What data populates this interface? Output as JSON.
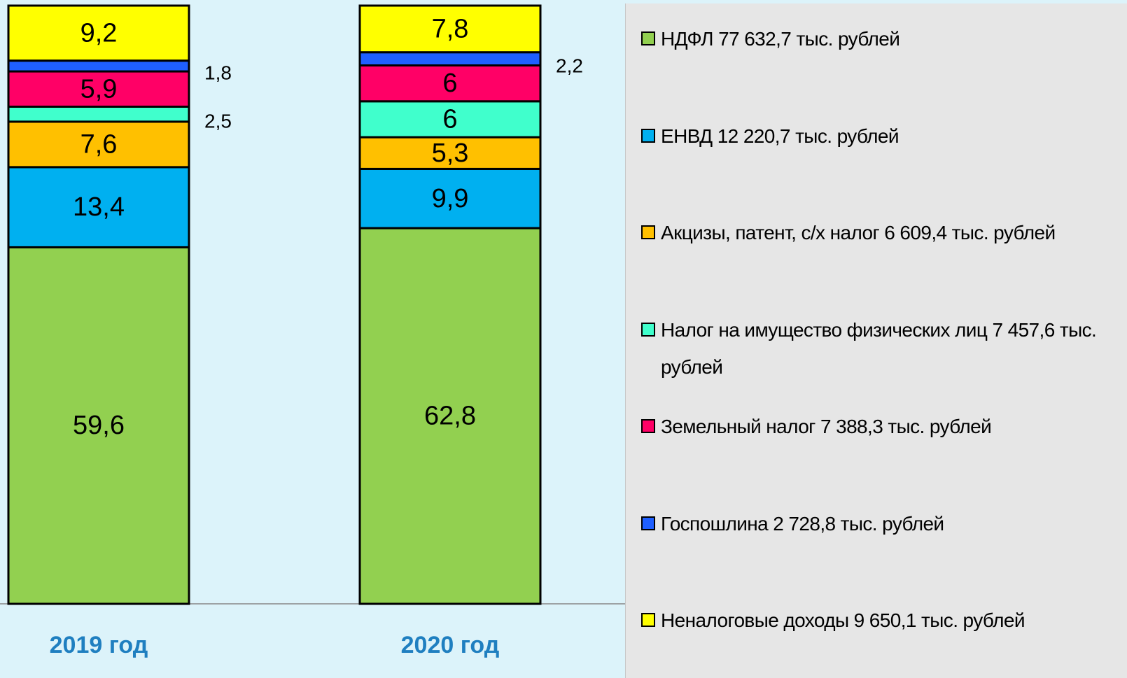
{
  "chart_data": {
    "type": "stacked_bar",
    "categories": [
      "2019 год",
      "2020 год"
    ],
    "ylim": [
      0,
      100
    ],
    "series": [
      {
        "name": "НДФЛ 77 632,7 тыс. рублей",
        "color": "#92d050",
        "values": [
          59.6,
          62.8
        ],
        "value_labels": [
          "59,6",
          "62,8"
        ]
      },
      {
        "name": "ЕНВД 12 220,7 тыс. рублей",
        "color": "#00b0f0",
        "values": [
          13.4,
          9.9
        ],
        "value_labels": [
          "13,4",
          "9,9"
        ]
      },
      {
        "name": "Акцизы, патент, с/х налог 6 609,4 тыс. рублей",
        "color": "#ffc000",
        "values": [
          7.6,
          5.3
        ],
        "value_labels": [
          "7,6",
          "5,3"
        ]
      },
      {
        "name": "Налог на имущество физических лиц 7 457,6 тыс. рублей",
        "color": "#40ffcc",
        "values": [
          2.5,
          6
        ],
        "value_labels": [
          "2,5",
          "6"
        ]
      },
      {
        "name": "Земельный налог 7 388,3 тыс. рублей",
        "color": "#ff0066",
        "values": [
          5.9,
          6
        ],
        "value_labels": [
          "5,9",
          "6"
        ]
      },
      {
        "name": "Госпошлина 2 728,8 тыс. рублей",
        "color": "#1f5fff",
        "values": [
          1.8,
          2.2
        ],
        "value_labels": [
          "1,8",
          "2,2"
        ]
      },
      {
        "name": "Неналоговые доходы 9 650,1 тыс. рублей",
        "color": "#ffff00",
        "values": [
          9.2,
          7.8
        ],
        "value_labels": [
          "9,2",
          "7,8"
        ]
      }
    ]
  }
}
